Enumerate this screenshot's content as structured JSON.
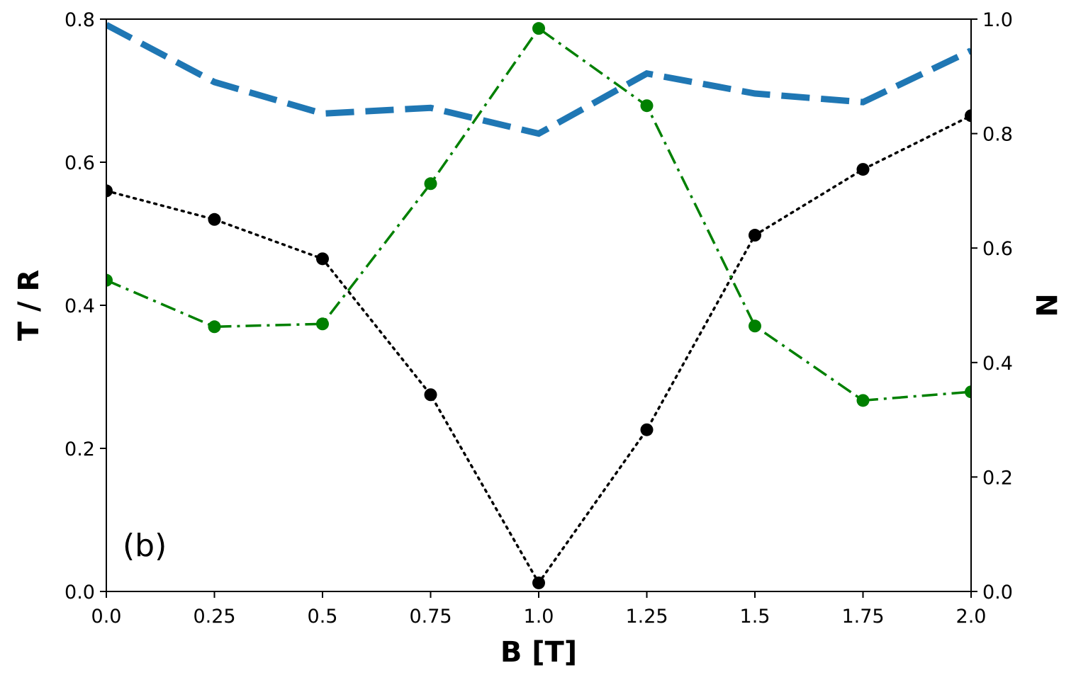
{
  "chart_data": {
    "type": "line",
    "panel_label": "(b)",
    "xlabel": "B [T]",
    "ylabel": "T / R",
    "y2label": "N",
    "xlim": [
      0,
      2
    ],
    "ylim": [
      0,
      0.8
    ],
    "y2lim": [
      0,
      1.0
    ],
    "xticks": [
      "0.0",
      "0.25",
      "0.5",
      "0.75",
      "1.0",
      "1.25",
      "1.5",
      "1.75",
      "2.0"
    ],
    "yticks": [
      "0.0",
      "0.2",
      "0.4",
      "0.6",
      "0.8"
    ],
    "y2ticks": [
      "0.0",
      "0.2",
      "0.4",
      "0.6",
      "0.8",
      "1.0"
    ],
    "grid": false,
    "x": [
      0.0,
      0.25,
      0.5,
      0.75,
      1.0,
      1.25,
      1.5,
      1.75,
      2.0
    ],
    "series": [
      {
        "axis": "right",
        "color": "#1f77b4",
        "style": "dashed",
        "markers": false,
        "values": [
          0.99,
          0.89,
          0.835,
          0.845,
          0.8,
          0.905,
          0.87,
          0.855,
          0.945
        ]
      },
      {
        "axis": "left",
        "color": "#000000",
        "style": "dotted",
        "markers": true,
        "values": [
          0.56,
          0.52,
          0.465,
          0.275,
          0.012,
          0.226,
          0.498,
          0.59,
          0.665
        ]
      },
      {
        "axis": "left",
        "color": "#008000",
        "style": "dashdot",
        "markers": true,
        "values": [
          0.435,
          0.37,
          0.374,
          0.57,
          0.787,
          0.679,
          0.371,
          0.267,
          0.279
        ]
      }
    ]
  }
}
